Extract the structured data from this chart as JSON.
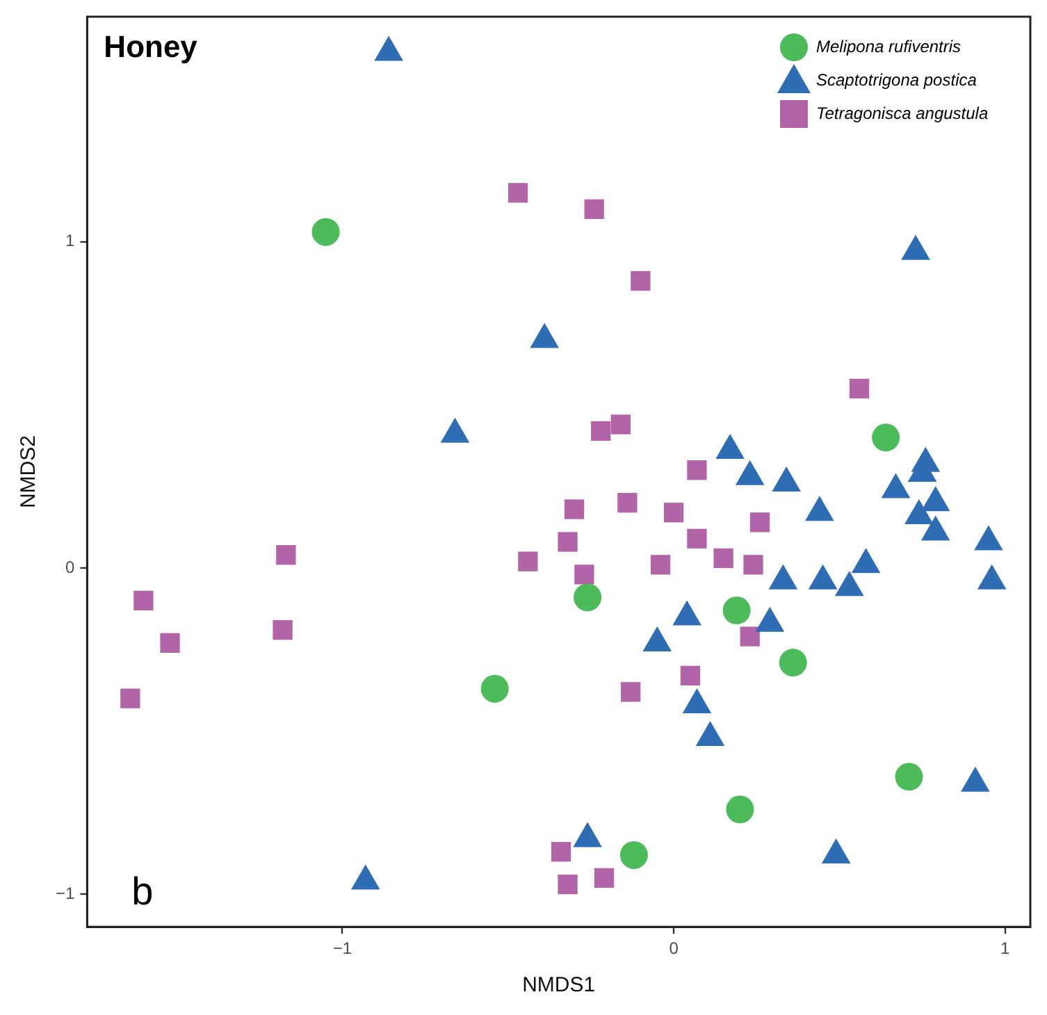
{
  "chart_data": {
    "type": "scatter",
    "title": "Honey",
    "xlabel": "NMDS1",
    "ylabel": "NMDS2",
    "annotations": [
      "b"
    ],
    "xlim": [
      -1.77,
      1.076
    ],
    "ylim": [
      -1.1,
      1.69
    ],
    "xticks": [
      {
        "value": -1,
        "label": "−1"
      },
      0,
      1
    ],
    "yticks": [
      {
        "value": -1,
        "label": "−1"
      },
      0,
      1
    ],
    "grid": false,
    "legend": "top right",
    "series": [
      {
        "name": "Melipona rufiventris",
        "color": "#4cbb5a",
        "marker": "circle",
        "x": [
          -1.05,
          -0.26,
          -0.54,
          0.19,
          0.36,
          0.64,
          0.71,
          0.2,
          -0.12
        ],
        "values": [
          1.03,
          -0.09,
          -0.37,
          -0.13,
          -0.29,
          0.4,
          -0.64,
          -0.74,
          -0.88
        ]
      },
      {
        "name": "Scaptotrigona postica",
        "color": "#2e6db4",
        "marker": "triangle",
        "x": [
          -0.86,
          0.73,
          -0.39,
          -0.66,
          0.17,
          0.23,
          0.34,
          0.44,
          0.67,
          0.76,
          0.75,
          0.74,
          0.79,
          0.79,
          0.95,
          0.96,
          0.58,
          0.53,
          0.45,
          0.33,
          0.29,
          0.04,
          -0.05,
          0.07,
          0.11,
          0.91,
          0.49,
          -0.26,
          -0.93
        ],
        "values": [
          1.58,
          0.97,
          0.7,
          0.41,
          0.36,
          0.28,
          0.26,
          0.17,
          0.24,
          0.32,
          0.29,
          0.16,
          0.2,
          0.11,
          0.08,
          -0.04,
          0.01,
          -0.06,
          -0.04,
          -0.04,
          -0.17,
          -0.15,
          -0.23,
          -0.42,
          -0.52,
          -0.66,
          -0.88,
          -0.83,
          -0.96
        ]
      },
      {
        "name": "Tetragonisca angustula",
        "color": "#b164a8",
        "marker": "square",
        "x": [
          -0.47,
          -0.24,
          -0.1,
          -0.16,
          -0.22,
          0.56,
          0.07,
          -0.3,
          -0.14,
          0.0,
          0.26,
          -0.32,
          -0.44,
          -0.27,
          -0.04,
          0.07,
          0.15,
          0.24,
          0.23,
          0.05,
          -0.13,
          -1.17,
          -1.6,
          -1.52,
          -1.18,
          -1.64,
          -0.34,
          -0.32,
          -0.21
        ],
        "values": [
          1.15,
          1.1,
          0.88,
          0.44,
          0.42,
          0.55,
          0.3,
          0.18,
          0.2,
          0.17,
          0.14,
          0.08,
          0.02,
          -0.02,
          0.01,
          0.09,
          0.03,
          0.01,
          -0.21,
          -0.33,
          -0.38,
          0.04,
          -0.1,
          -0.23,
          -0.19,
          -0.4,
          -0.87,
          -0.97,
          -0.95
        ]
      }
    ]
  }
}
